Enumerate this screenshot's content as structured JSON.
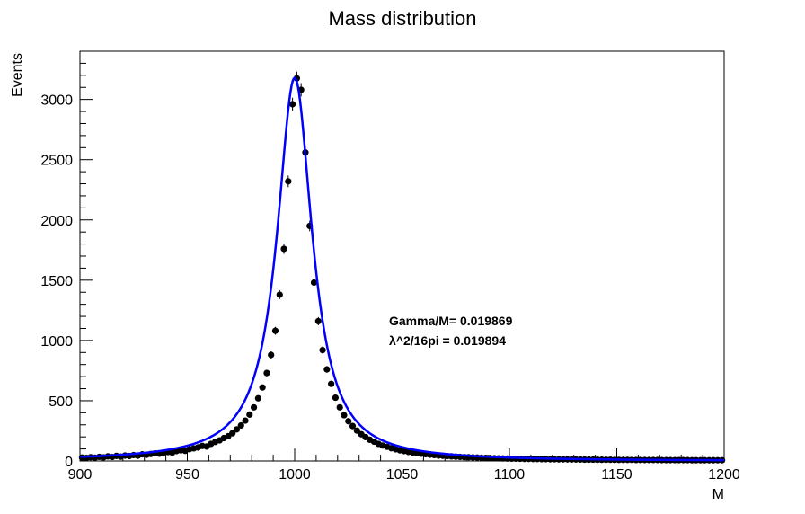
{
  "chart_data": {
    "type": "scatter",
    "title": "Mass distribution",
    "xlabel": "M",
    "ylabel": "Events",
    "xlim": [
      900,
      1200
    ],
    "ylim": [
      0,
      3400
    ],
    "x_ticks": [
      900,
      950,
      1000,
      1050,
      1100,
      1150,
      1200
    ],
    "y_ticks": [
      0,
      500,
      1000,
      1500,
      2000,
      2500,
      3000
    ],
    "annotations": [
      "Gamma/M= 0.019869",
      "λ^2/16pi = 0.019894"
    ],
    "fit": {
      "type": "breit-wigner",
      "mean": 1000,
      "gamma_over_m": 0.019869,
      "peak": 3180,
      "color": "#0000ff"
    },
    "series": [
      {
        "marker_color": "#000000",
        "x": [
          901,
          903,
          905,
          907,
          909,
          911,
          913,
          915,
          917,
          919,
          921,
          923,
          925,
          927,
          929,
          931,
          933,
          935,
          937,
          939,
          941,
          943,
          945,
          947,
          949,
          951,
          953,
          955,
          957,
          959,
          961,
          963,
          965,
          967,
          969,
          971,
          973,
          975,
          977,
          979,
          981,
          983,
          985,
          987,
          989,
          991,
          993,
          995,
          997,
          999,
          1001,
          1003,
          1005,
          1007,
          1009,
          1011,
          1013,
          1015,
          1017,
          1019,
          1021,
          1023,
          1025,
          1027,
          1029,
          1031,
          1033,
          1035,
          1037,
          1039,
          1041,
          1043,
          1045,
          1047,
          1049,
          1051,
          1053,
          1055,
          1057,
          1059,
          1061,
          1063,
          1065,
          1067,
          1069,
          1071,
          1073,
          1075,
          1077,
          1079,
          1081,
          1083,
          1085,
          1087,
          1089,
          1091,
          1093,
          1095,
          1097,
          1099,
          1101,
          1103,
          1105,
          1107,
          1109,
          1111,
          1113,
          1115,
          1117,
          1119,
          1121,
          1123,
          1125,
          1127,
          1129,
          1131,
          1133,
          1135,
          1137,
          1139,
          1141,
          1143,
          1145,
          1147,
          1149,
          1151,
          1153,
          1155,
          1157,
          1159,
          1161,
          1163,
          1165,
          1167,
          1169,
          1171,
          1173,
          1175,
          1177,
          1179,
          1181,
          1183,
          1185,
          1187,
          1189,
          1191,
          1193,
          1195,
          1197,
          1199
        ],
        "y": [
          28,
          25,
          31,
          27,
          34,
          30,
          38,
          33,
          42,
          36,
          45,
          41,
          49,
          44,
          55,
          51,
          58,
          63,
          60,
          70,
          74,
          69,
          82,
          88,
          84,
          98,
          105,
          112,
          125,
          120,
          142,
          158,
          171,
          190,
          205,
          230,
          262,
          295,
          335,
          385,
          445,
          520,
          610,
          730,
          880,
          1080,
          1380,
          1760,
          2320,
          2960,
          3175,
          3080,
          2560,
          1950,
          1480,
          1160,
          920,
          760,
          640,
          525,
          445,
          380,
          330,
          290,
          252,
          222,
          198,
          176,
          160,
          142,
          128,
          118,
          106,
          97,
          88,
          82,
          75,
          70,
          64,
          60,
          56,
          52,
          49,
          45,
          43,
          40,
          38,
          36,
          34,
          32,
          31,
          29,
          28,
          26,
          25,
          24,
          23,
          22,
          21,
          20,
          19,
          19,
          18,
          17,
          17,
          16,
          16,
          15,
          15,
          14,
          14,
          13,
          13,
          13,
          12,
          12,
          12,
          11,
          11,
          11,
          10,
          10,
          10,
          10,
          9,
          9,
          9,
          9,
          9,
          8,
          8,
          8,
          8,
          8,
          8,
          7,
          7,
          7,
          7,
          7,
          7,
          7,
          6,
          6,
          6,
          6,
          6,
          6,
          6,
          6
        ]
      }
    ]
  }
}
